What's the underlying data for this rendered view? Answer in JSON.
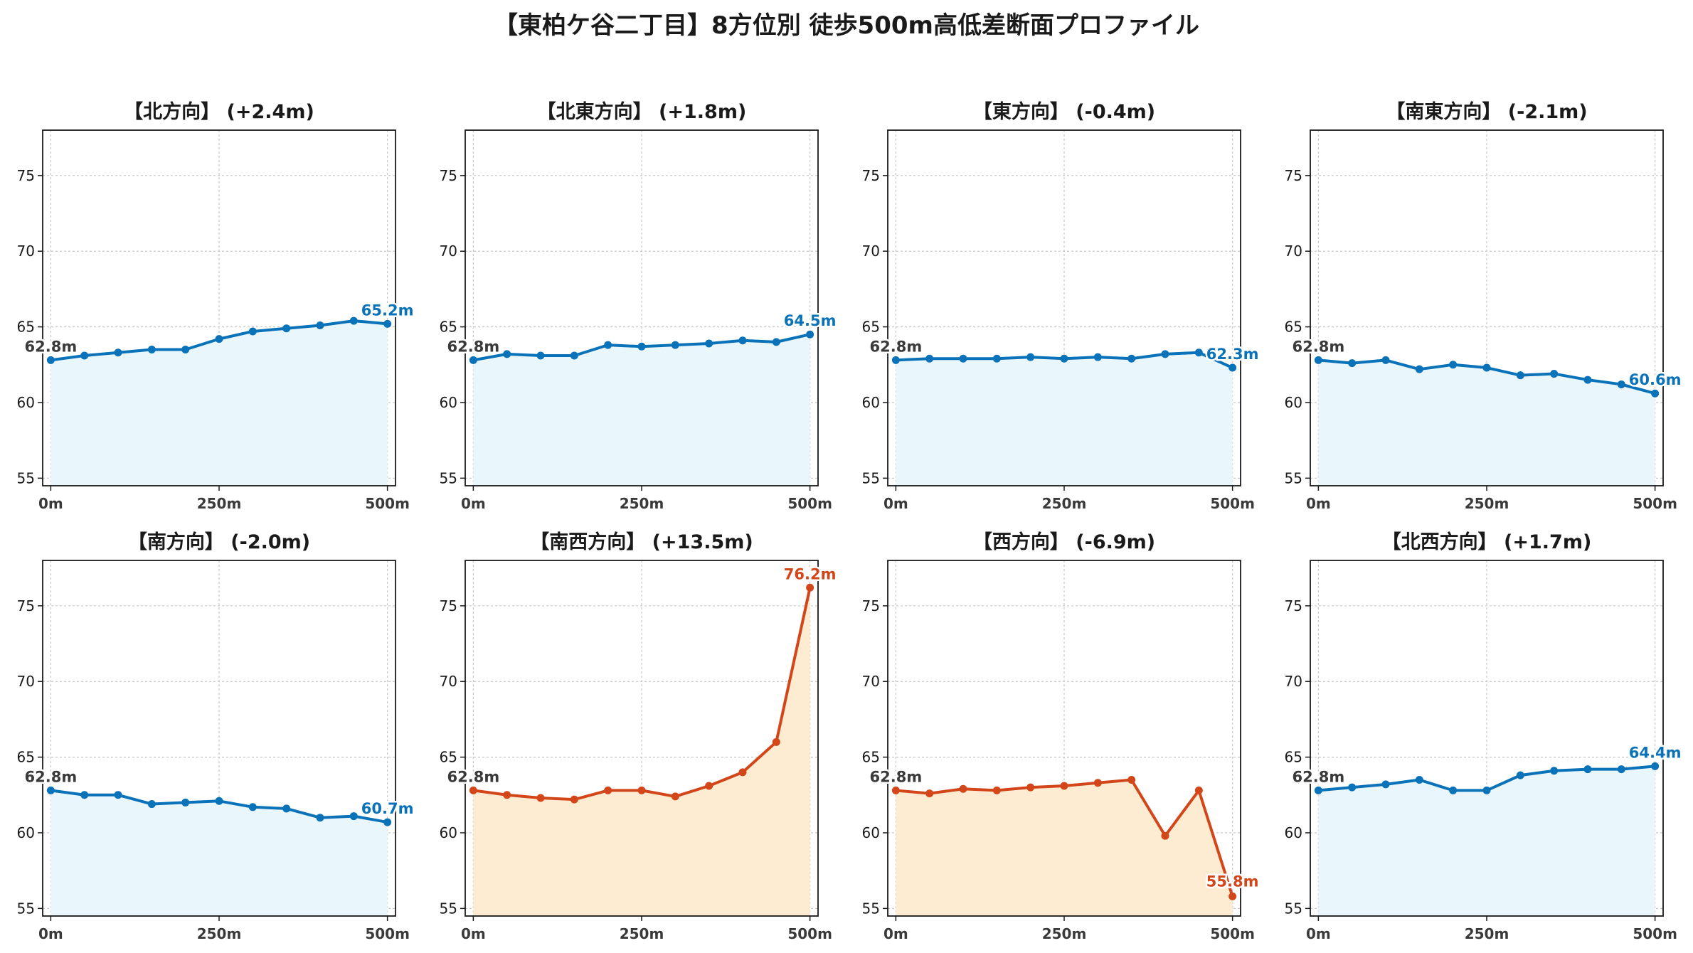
{
  "title": "【東柏ケ谷二丁目】8方位別 徒歩500m高低差断面プロファイル",
  "colors": {
    "up_line": "#0a72b8",
    "up_fill": "#e9f6fc",
    "down_line": "#d2461a",
    "down_fill": "#fdecd2",
    "start_label": "#3a3a3a"
  },
  "chart_data": [
    {
      "type": "area",
      "title": "【北方向】 (+2.4m)",
      "x": [
        0,
        50,
        100,
        150,
        200,
        250,
        300,
        350,
        400,
        450,
        500
      ],
      "values": [
        62.8,
        63.1,
        63.3,
        63.5,
        63.5,
        64.2,
        64.7,
        64.9,
        65.1,
        65.4,
        65.2
      ],
      "start_label": "62.8m",
      "end_label": "65.2m",
      "style": "up",
      "xticks": [
        "0m",
        "250m",
        "500m"
      ],
      "yticks": [
        55,
        60,
        65,
        70,
        75
      ],
      "ylim": [
        54.5,
        78.0
      ],
      "xlim": [
        -12,
        512
      ],
      "grid": true
    },
    {
      "type": "area",
      "title": "【北東方向】 (+1.8m)",
      "x": [
        0,
        50,
        100,
        150,
        200,
        250,
        300,
        350,
        400,
        450,
        500
      ],
      "values": [
        62.8,
        63.2,
        63.1,
        63.1,
        63.8,
        63.7,
        63.8,
        63.9,
        64.1,
        64.0,
        64.5
      ],
      "start_label": "62.8m",
      "end_label": "64.5m",
      "style": "up",
      "xticks": [
        "0m",
        "250m",
        "500m"
      ],
      "yticks": [
        55,
        60,
        65,
        70,
        75
      ],
      "ylim": [
        54.5,
        78.0
      ],
      "xlim": [
        -12,
        512
      ],
      "grid": true
    },
    {
      "type": "area",
      "title": "【東方向】 (-0.4m)",
      "x": [
        0,
        50,
        100,
        150,
        200,
        250,
        300,
        350,
        400,
        450,
        500
      ],
      "values": [
        62.8,
        62.9,
        62.9,
        62.9,
        63.0,
        62.9,
        63.0,
        62.9,
        63.2,
        63.3,
        62.3
      ],
      "start_label": "62.8m",
      "end_label": "62.3m",
      "style": "up",
      "xticks": [
        "0m",
        "250m",
        "500m"
      ],
      "yticks": [
        55,
        60,
        65,
        70,
        75
      ],
      "ylim": [
        54.5,
        78.0
      ],
      "xlim": [
        -12,
        512
      ],
      "grid": true
    },
    {
      "type": "area",
      "title": "【南東方向】 (-2.1m)",
      "x": [
        0,
        50,
        100,
        150,
        200,
        250,
        300,
        350,
        400,
        450,
        500
      ],
      "values": [
        62.8,
        62.6,
        62.8,
        62.2,
        62.5,
        62.3,
        61.8,
        61.9,
        61.5,
        61.2,
        60.6
      ],
      "start_label": "62.8m",
      "end_label": "60.6m",
      "style": "up",
      "xticks": [
        "0m",
        "250m",
        "500m"
      ],
      "yticks": [
        55,
        60,
        65,
        70,
        75
      ],
      "ylim": [
        54.5,
        78.0
      ],
      "xlim": [
        -12,
        512
      ],
      "grid": true
    },
    {
      "type": "area",
      "title": "【南方向】 (-2.0m)",
      "x": [
        0,
        50,
        100,
        150,
        200,
        250,
        300,
        350,
        400,
        450,
        500
      ],
      "values": [
        62.8,
        62.5,
        62.5,
        61.9,
        62.0,
        62.1,
        61.7,
        61.6,
        61.0,
        61.1,
        60.7
      ],
      "start_label": "62.8m",
      "end_label": "60.7m",
      "style": "up",
      "xticks": [
        "0m",
        "250m",
        "500m"
      ],
      "yticks": [
        55,
        60,
        65,
        70,
        75
      ],
      "ylim": [
        54.5,
        78.0
      ],
      "xlim": [
        -12,
        512
      ],
      "grid": true
    },
    {
      "type": "area",
      "title": "【南西方向】 (+13.5m)",
      "x": [
        0,
        50,
        100,
        150,
        200,
        250,
        300,
        350,
        400,
        450,
        500
      ],
      "values": [
        62.8,
        62.5,
        62.3,
        62.2,
        62.8,
        62.8,
        62.4,
        63.1,
        64.0,
        66.0,
        76.2
      ],
      "start_label": "62.8m",
      "end_label": "76.2m",
      "style": "down",
      "xticks": [
        "0m",
        "250m",
        "500m"
      ],
      "yticks": [
        55,
        60,
        65,
        70,
        75
      ],
      "ylim": [
        54.5,
        78.0
      ],
      "xlim": [
        -12,
        512
      ],
      "grid": true
    },
    {
      "type": "area",
      "title": "【西方向】 (-6.9m)",
      "x": [
        0,
        50,
        100,
        150,
        200,
        250,
        300,
        350,
        400,
        450,
        500
      ],
      "values": [
        62.8,
        62.6,
        62.9,
        62.8,
        63.0,
        63.1,
        63.3,
        63.5,
        59.8,
        62.8,
        55.8
      ],
      "start_label": "62.8m",
      "end_label": "55.8m",
      "style": "down",
      "xticks": [
        "0m",
        "250m",
        "500m"
      ],
      "yticks": [
        55,
        60,
        65,
        70,
        75
      ],
      "ylim": [
        54.5,
        78.0
      ],
      "xlim": [
        -12,
        512
      ],
      "grid": true
    },
    {
      "type": "area",
      "title": "【北西方向】 (+1.7m)",
      "x": [
        0,
        50,
        100,
        150,
        200,
        250,
        300,
        350,
        400,
        450,
        500
      ],
      "values": [
        62.8,
        63.0,
        63.2,
        63.5,
        62.8,
        62.8,
        63.8,
        64.1,
        64.2,
        64.2,
        64.4
      ],
      "start_label": "62.8m",
      "end_label": "64.4m",
      "style": "up",
      "xticks": [
        "0m",
        "250m",
        "500m"
      ],
      "yticks": [
        55,
        60,
        65,
        70,
        75
      ],
      "ylim": [
        54.5,
        78.0
      ],
      "xlim": [
        -12,
        512
      ],
      "grid": true
    }
  ]
}
